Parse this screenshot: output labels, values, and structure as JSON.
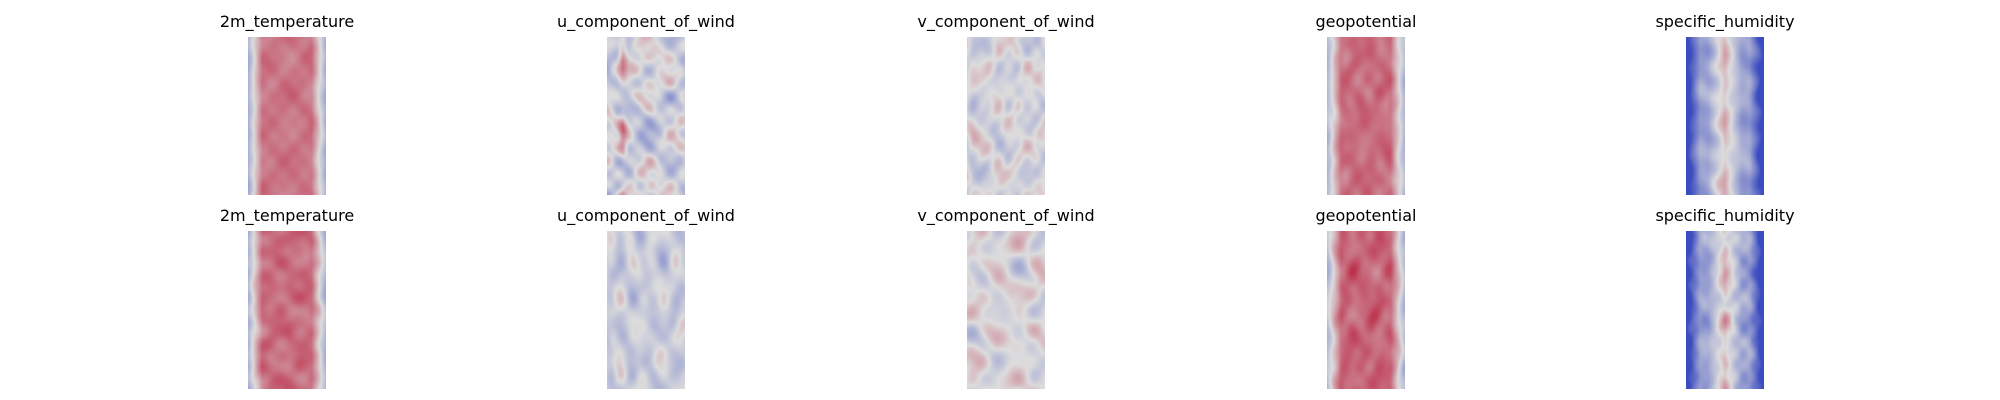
{
  "chart_data": [
    {
      "type": "heatmap",
      "title": "2m_temperature",
      "colormap": "coolwarm",
      "axes": "off"
    },
    {
      "type": "heatmap",
      "title": "u_component_of_wind",
      "colormap": "coolwarm",
      "axes": "off"
    },
    {
      "type": "heatmap",
      "title": "v_component_of_wind",
      "colormap": "coolwarm",
      "axes": "off"
    },
    {
      "type": "heatmap",
      "title": "geopotential",
      "colormap": "coolwarm",
      "axes": "off"
    },
    {
      "type": "heatmap",
      "title": "specific_humidity",
      "colormap": "coolwarm",
      "axes": "off"
    },
    {
      "type": "heatmap",
      "title": "2m_temperature",
      "colormap": "coolwarm",
      "axes": "off"
    },
    {
      "type": "heatmap",
      "title": "u_component_of_wind",
      "colormap": "coolwarm",
      "axes": "off"
    },
    {
      "type": "heatmap",
      "title": "v_component_of_wind",
      "colormap": "coolwarm",
      "axes": "off"
    },
    {
      "type": "heatmap",
      "title": "geopotential",
      "colormap": "coolwarm",
      "axes": "off"
    },
    {
      "type": "heatmap",
      "title": "specific_humidity",
      "colormap": "coolwarm",
      "axes": "off"
    }
  ],
  "colors": {
    "cold": "#3b4cc0",
    "neutral": "#dddddd",
    "warm": "#b40426"
  }
}
